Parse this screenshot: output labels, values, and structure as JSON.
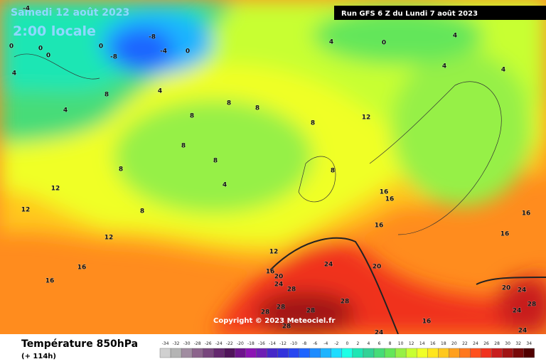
{
  "header": {
    "date": "Samedi 12 août 2023",
    "time": "2:00 locale",
    "run": "Run GFS 6 Z du Lundi 7 août 2023",
    "copyright": "Copyright © 2023 Meteociel.fr"
  },
  "footer": {
    "title": "Température 850hPa",
    "lead": "(+ 114h)"
  },
  "legend": {
    "values": [
      -34,
      -32,
      -30,
      -28,
      -26,
      -24,
      -22,
      -20,
      -18,
      -16,
      -14,
      -12,
      -10,
      -8,
      -6,
      -4,
      -2,
      0,
      2,
      4,
      6,
      8,
      10,
      12,
      14,
      16,
      18,
      20,
      22,
      24,
      26,
      28,
      30,
      32,
      34
    ],
    "colors": [
      "#d0d0d0",
      "#b4b4b4",
      "#a08ca0",
      "#8c648c",
      "#78467d",
      "#64286e",
      "#50145a",
      "#6e148c",
      "#8c14b4",
      "#6e1eb4",
      "#4628c8",
      "#3232dc",
      "#2846f0",
      "#1e64ff",
      "#1e8cff",
      "#1eb4ff",
      "#1edcff",
      "#1effe6",
      "#1ee6b4",
      "#32d296",
      "#46dc78",
      "#64e65a",
      "#96f046",
      "#c8ff32",
      "#f0ff28",
      "#ffe61e",
      "#ffc81e",
      "#ffa01e",
      "#ff781e",
      "#ff501e",
      "#f0321e",
      "#c81e1e",
      "#a01414",
      "#780a0a",
      "#500000"
    ]
  },
  "contour_labels": [
    -4,
    -8,
    -4,
    -8,
    0,
    0,
    0,
    0,
    0,
    4,
    4,
    4,
    4,
    0,
    4,
    4,
    4,
    8,
    8,
    8,
    8,
    8,
    8,
    8,
    8,
    8,
    4,
    8,
    12,
    12,
    12,
    12,
    12,
    16,
    16,
    16,
    16,
    16,
    16,
    16,
    16,
    16,
    20,
    20,
    20,
    24,
    24,
    24,
    24,
    24,
    28,
    28,
    28,
    28,
    28,
    28,
    28,
    24
  ]
}
